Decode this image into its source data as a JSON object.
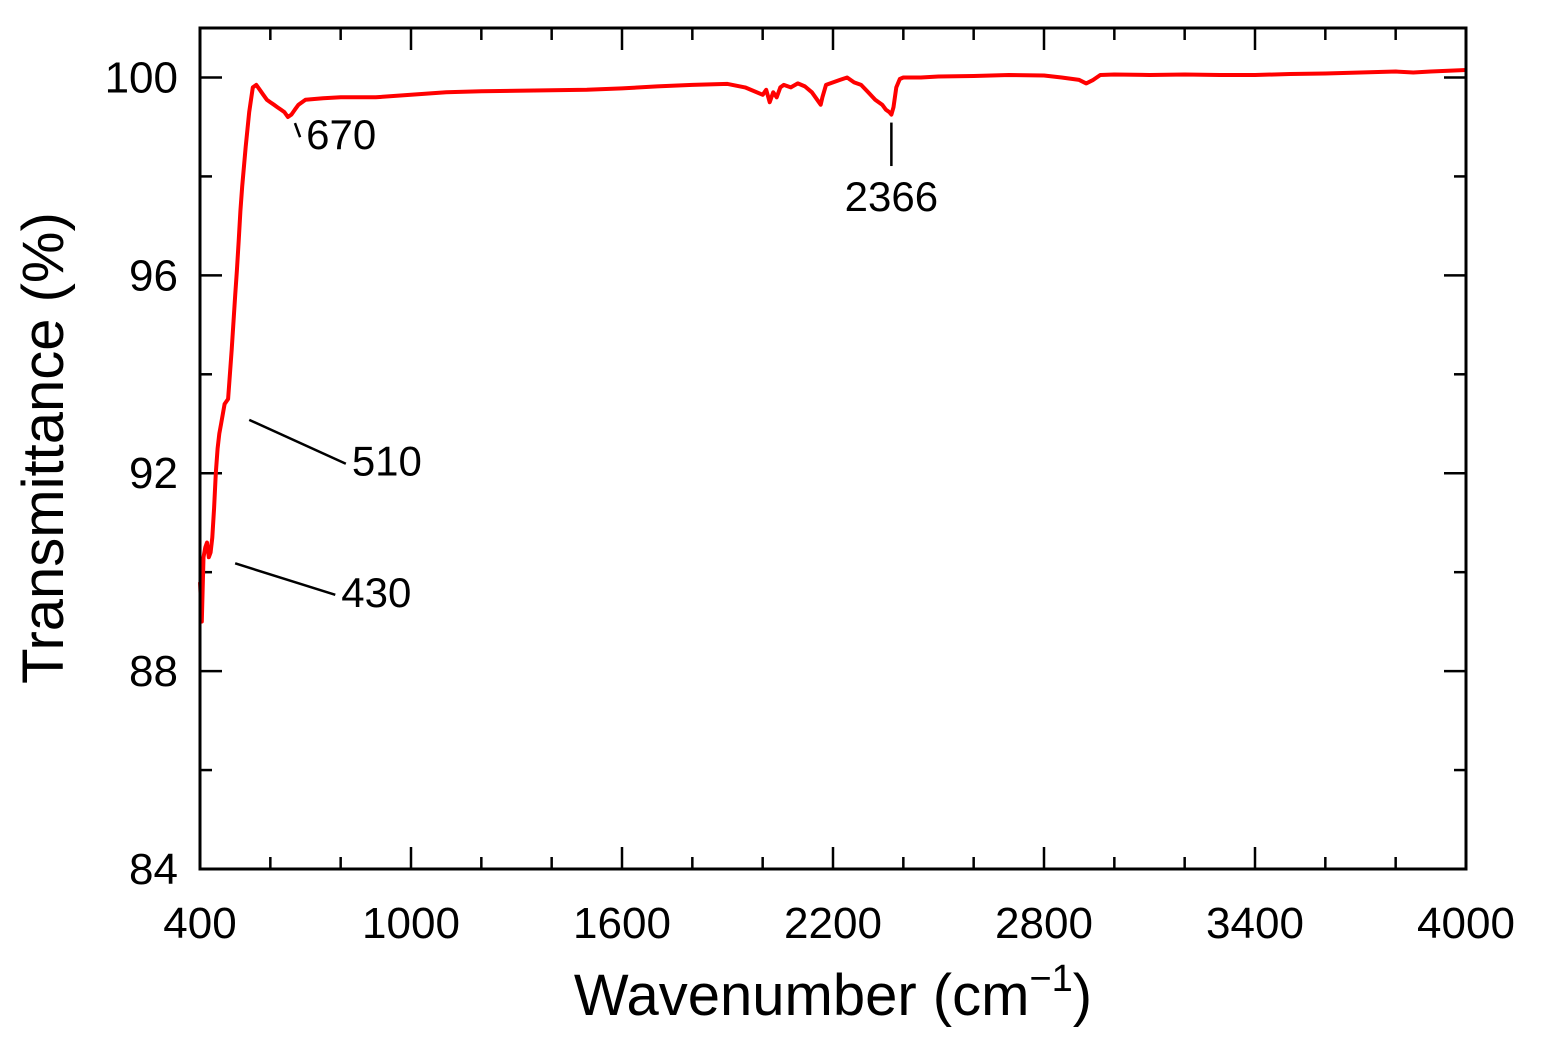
{
  "chart_data": {
    "type": "line",
    "xlabel": "Wavenumber   (cm",
    "xlabel_sup": "−1",
    "xlabel_tail": ")",
    "ylabel": "Transmittance    (%)",
    "xlim": [
      400,
      4000
    ],
    "ylim": [
      84,
      101
    ],
    "x_ticks": [
      400,
      1000,
      1600,
      2200,
      2800,
      3400,
      4000
    ],
    "x_tick_labels": [
      "400",
      "1000",
      "1600",
      "2200",
      "2800",
      "3400",
      "4000"
    ],
    "x_minor_step": 200,
    "y_ticks": [
      84,
      88,
      92,
      96,
      100
    ],
    "y_tick_labels": [
      "84",
      "88",
      "92",
      "96",
      "100"
    ],
    "y_minor_step": 2,
    "grid": false,
    "legend": "none",
    "series": [
      {
        "color": "#ff0000",
        "x": [
          400,
          405,
          410,
          415,
          420,
          425,
          430,
          435,
          440,
          445,
          450,
          455,
          460,
          470,
          480,
          490,
          500,
          505,
          510,
          515,
          520,
          530,
          540,
          550,
          560,
          570,
          580,
          590,
          600,
          610,
          620,
          630,
          640,
          650,
          660,
          670,
          680,
          690,
          700,
          750,
          800,
          900,
          1000,
          1100,
          1200,
          1300,
          1400,
          1500,
          1600,
          1700,
          1800,
          1900,
          1950,
          2000,
          2010,
          2020,
          2030,
          2040,
          2050,
          2060,
          2080,
          2100,
          2120,
          2140,
          2160,
          2165,
          2170,
          2180,
          2200,
          2220,
          2240,
          2260,
          2280,
          2300,
          2320,
          2340,
          2350,
          2360,
          2366,
          2372,
          2380,
          2390,
          2400,
          2450,
          2500,
          2600,
          2700,
          2800,
          2850,
          2900,
          2920,
          2940,
          2960,
          3000,
          3100,
          3200,
          3300,
          3400,
          3500,
          3600,
          3700,
          3800,
          3850,
          3900,
          4000
        ],
        "y": [
          89.8,
          89.0,
          90.3,
          90.5,
          90.6,
          90.3,
          90.4,
          90.7,
          91.3,
          92.0,
          92.5,
          92.8,
          93.0,
          93.4,
          93.5,
          94.5,
          95.6,
          96.1,
          96.7,
          97.3,
          97.8,
          98.6,
          99.3,
          99.8,
          99.85,
          99.75,
          99.65,
          99.55,
          99.5,
          99.45,
          99.4,
          99.35,
          99.3,
          99.2,
          99.25,
          99.35,
          99.45,
          99.5,
          99.55,
          99.58,
          99.6,
          99.6,
          99.65,
          99.7,
          99.72,
          99.73,
          99.74,
          99.75,
          99.78,
          99.82,
          99.85,
          99.87,
          99.8,
          99.65,
          99.75,
          99.5,
          99.7,
          99.6,
          99.8,
          99.85,
          99.8,
          99.88,
          99.82,
          99.7,
          99.5,
          99.45,
          99.6,
          99.85,
          99.9,
          99.95,
          100.0,
          99.9,
          99.85,
          99.7,
          99.55,
          99.45,
          99.35,
          99.3,
          99.25,
          99.4,
          99.8,
          99.97,
          100.0,
          100.0,
          100.02,
          100.03,
          100.05,
          100.04,
          100.0,
          99.95,
          99.88,
          99.95,
          100.05,
          100.06,
          100.05,
          100.06,
          100.05,
          100.05,
          100.07,
          100.08,
          100.1,
          100.12,
          100.1,
          100.12,
          100.15
        ]
      }
    ],
    "annotations": [
      {
        "label": "670",
        "x": 670,
        "y": 99.2,
        "text_x": 770,
        "text_y": 98.55
      },
      {
        "label": "2366",
        "x": 2366,
        "y": 99.25,
        "text_x": 2366,
        "text_y": 97.3
      },
      {
        "label": "510",
        "x": 540,
        "y": 93.2,
        "text_x": 900,
        "text_y": 91.95
      },
      {
        "label": "430",
        "x": 500,
        "y": 90.3,
        "text_x": 870,
        "text_y": 89.3
      }
    ]
  }
}
